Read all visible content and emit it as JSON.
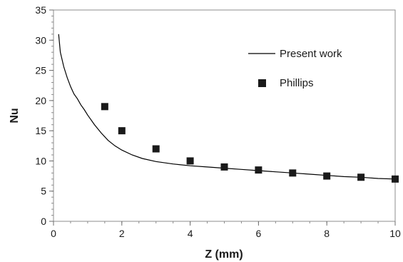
{
  "chart_data": {
    "type": "line",
    "xlabel": "Z (mm)",
    "ylabel": "Nu",
    "xlim": [
      0,
      10
    ],
    "ylim": [
      0,
      35
    ],
    "x_ticks": [
      0,
      2,
      4,
      6,
      8,
      10
    ],
    "y_ticks": [
      0,
      5,
      10,
      15,
      20,
      25,
      30,
      35
    ],
    "x_minor_step": 0.5,
    "y_minor_step": 1,
    "grid": false,
    "legend_position": "top-right",
    "series": [
      {
        "name": "Present work",
        "kind": "line",
        "color": "#000000",
        "x": [
          0.15,
          0.2,
          0.3,
          0.4,
          0.5,
          0.6,
          0.7,
          0.8,
          0.9,
          1.0,
          1.2,
          1.4,
          1.6,
          1.8,
          2.0,
          2.3,
          2.6,
          3.0,
          3.5,
          4.0,
          4.5,
          5.0,
          5.5,
          6.0,
          6.5,
          7.0,
          7.5,
          8.0,
          8.5,
          9.0,
          9.5,
          10.0
        ],
        "y": [
          31.0,
          28.0,
          25.6,
          23.8,
          22.3,
          21.1,
          20.3,
          19.3,
          18.5,
          17.6,
          16.0,
          14.6,
          13.4,
          12.5,
          11.8,
          11.0,
          10.4,
          9.9,
          9.5,
          9.2,
          9.0,
          8.8,
          8.6,
          8.4,
          8.2,
          8.0,
          7.8,
          7.6,
          7.4,
          7.3,
          7.1,
          7.0
        ]
      },
      {
        "name": "Phillips",
        "kind": "scatter",
        "marker": "square",
        "color": "#1a1a1a",
        "x": [
          1.5,
          2,
          3,
          4,
          5,
          6,
          7,
          8,
          9,
          10
        ],
        "y": [
          19,
          15,
          12,
          10,
          9,
          8.5,
          8,
          7.5,
          7.3,
          7
        ]
      }
    ]
  }
}
